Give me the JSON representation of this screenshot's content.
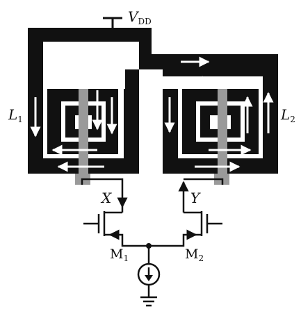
{
  "labels": {
    "supply": {
      "main": "V",
      "sub": "DD"
    },
    "inductor_left": {
      "main": "L",
      "sub": "1"
    },
    "inductor_right": {
      "main": "L",
      "sub": "2"
    },
    "node_left": "X",
    "node_right": "Y",
    "transistor_left": {
      "main": "M",
      "sub": "1"
    },
    "transistor_right": {
      "main": "M",
      "sub": "2"
    }
  },
  "colors": {
    "trace": "#111111",
    "underpass": "#9a9a9a",
    "background": "#ffffff"
  },
  "icons": [
    "current-source-icon",
    "ground-icon",
    "current-arrow-icon"
  ]
}
